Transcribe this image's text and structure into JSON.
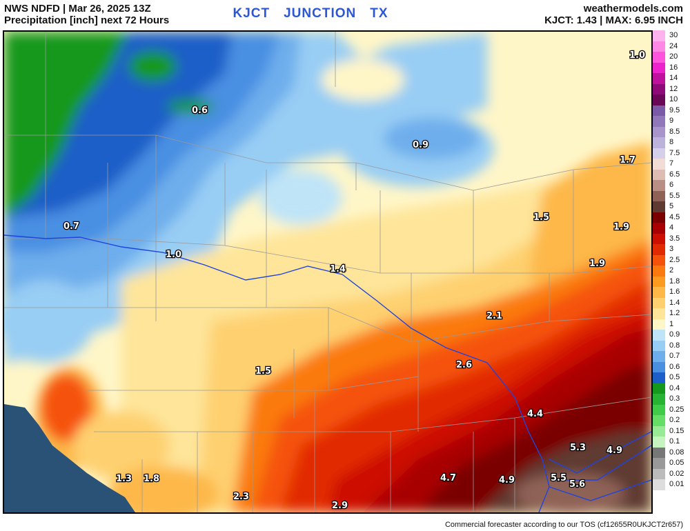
{
  "header": {
    "line1": "NWS NDFD | Mar 26, 2025 13Z",
    "line2": "Precipitation [inch] next 72 Hours",
    "station_code": "KJCT",
    "station_name": "JUNCTION",
    "station_state": "TX",
    "site": "weathermodels.com",
    "summary": "KJCT: 1.43 | MAX: 6.95 INCH"
  },
  "footer": "Commercial forecaster according to our TOS (cf12655R0UKJCT2r657)",
  "legend": [
    {
      "label": "30",
      "color": "#ffb3ee"
    },
    {
      "label": "24",
      "color": "#ff88e6"
    },
    {
      "label": "20",
      "color": "#ff55dd"
    },
    {
      "label": "16",
      "color": "#ee22cc"
    },
    {
      "label": "14",
      "color": "#c0109e"
    },
    {
      "label": "12",
      "color": "#8e0a78"
    },
    {
      "label": "10",
      "color": "#6a0858"
    },
    {
      "label": "9.5",
      "color": "#7b5aa8"
    },
    {
      "label": "9",
      "color": "#9178bb"
    },
    {
      "label": "8.5",
      "color": "#a795cc"
    },
    {
      "label": "8",
      "color": "#bdb2dc"
    },
    {
      "label": "7.5",
      "color": "#d6cfea"
    },
    {
      "label": "7",
      "color": "#f1dcd6"
    },
    {
      "label": "6.5",
      "color": "#ddbdb3"
    },
    {
      "label": "6",
      "color": "#b98f85"
    },
    {
      "label": "5.5",
      "color": "#8f6257"
    },
    {
      "label": "5",
      "color": "#5e3a33"
    },
    {
      "label": "4.5",
      "color": "#7a0000"
    },
    {
      "label": "4",
      "color": "#a80000"
    },
    {
      "label": "3.5",
      "color": "#cc0f00"
    },
    {
      "label": "3",
      "color": "#e22a00"
    },
    {
      "label": "2.5",
      "color": "#f5520c"
    },
    {
      "label": "2",
      "color": "#fb7a10"
    },
    {
      "label": "1.8",
      "color": "#fd9a20"
    },
    {
      "label": "1.6",
      "color": "#fdb848"
    },
    {
      "label": "1.4",
      "color": "#fed070"
    },
    {
      "label": "1.2",
      "color": "#fee59a"
    },
    {
      "label": "1",
      "color": "#fff6c8"
    },
    {
      "label": "0.9",
      "color": "#bfe4f8"
    },
    {
      "label": "0.8",
      "color": "#98cdf4"
    },
    {
      "label": "0.7",
      "color": "#6eaeec"
    },
    {
      "label": "0.6",
      "color": "#4a8fe2"
    },
    {
      "label": "0.5",
      "color": "#1c5fc8"
    },
    {
      "label": "0.4",
      "color": "#16981f"
    },
    {
      "label": "0.3",
      "color": "#27b334"
    },
    {
      "label": "0.25",
      "color": "#40cc48"
    },
    {
      "label": "0.2",
      "color": "#66dd66"
    },
    {
      "label": "0.15",
      "color": "#99ea94"
    },
    {
      "label": "0.1",
      "color": "#c6f4c0"
    },
    {
      "label": "0.08",
      "color": "#777777"
    },
    {
      "label": "0.05",
      "color": "#999999"
    },
    {
      "label": "0.02",
      "color": "#bbbbbb"
    },
    {
      "label": "0.01",
      "color": "#dddddd"
    }
  ],
  "map_labels": [
    "1.0",
    "0.6",
    "0.9",
    "1.7",
    "0.7",
    "1.0",
    "1.4",
    "1.5",
    "1.9",
    "1.9",
    "2.1",
    "1.5",
    "2.6",
    "4.4",
    "5.3",
    "4.9",
    "5.5",
    "5.6",
    "4.7",
    "4.9",
    "1.3",
    "1.8",
    "2.3",
    "2.9"
  ],
  "colors": {
    "water": "#2a5176",
    "river": "#1f44dd",
    "county_line": "#9a9a9a"
  }
}
